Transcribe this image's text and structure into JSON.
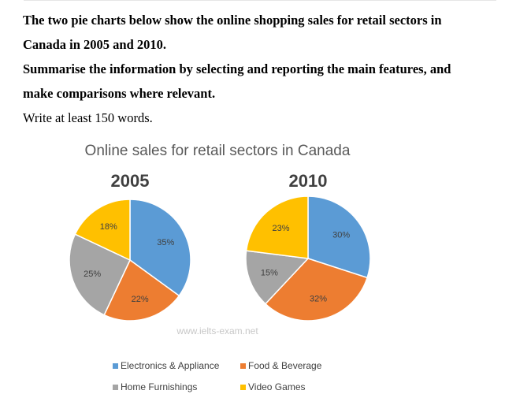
{
  "task": {
    "line1": "The two pie charts below show the online shopping sales for retail sectors in",
    "line2": "Canada in 2005 and 2010.",
    "line3": "Summarise the information by selecting and reporting the main features, and",
    "line4": "make comparisons where relevant.",
    "line5": "Write at least 150 words."
  },
  "watermark": "www.ielts-exam.net",
  "colors": {
    "title": "#595959",
    "year": "#404040",
    "label": "#404040",
    "legend_text": "#404040",
    "watermark": "#c8c8c8"
  },
  "chart_data": {
    "type": "pie",
    "title": "Online sales for retail sectors in Canada",
    "legend_position": "bottom",
    "categories": [
      "Electronics & Appliance",
      "Food & Beverage",
      "Home Furnishings",
      "Video Games"
    ],
    "colors": [
      "#5b9bd5",
      "#ed7d31",
      "#a5a5a5",
      "#ffc000"
    ],
    "series": [
      {
        "name": "2005",
        "values": [
          35,
          22,
          25,
          18
        ],
        "labels": [
          "35%",
          "22%",
          "25%",
          "18%"
        ]
      },
      {
        "name": "2010",
        "values": [
          30,
          32,
          15,
          23
        ],
        "labels": [
          "30%",
          "32%",
          "15%",
          "23%"
        ]
      }
    ]
  }
}
